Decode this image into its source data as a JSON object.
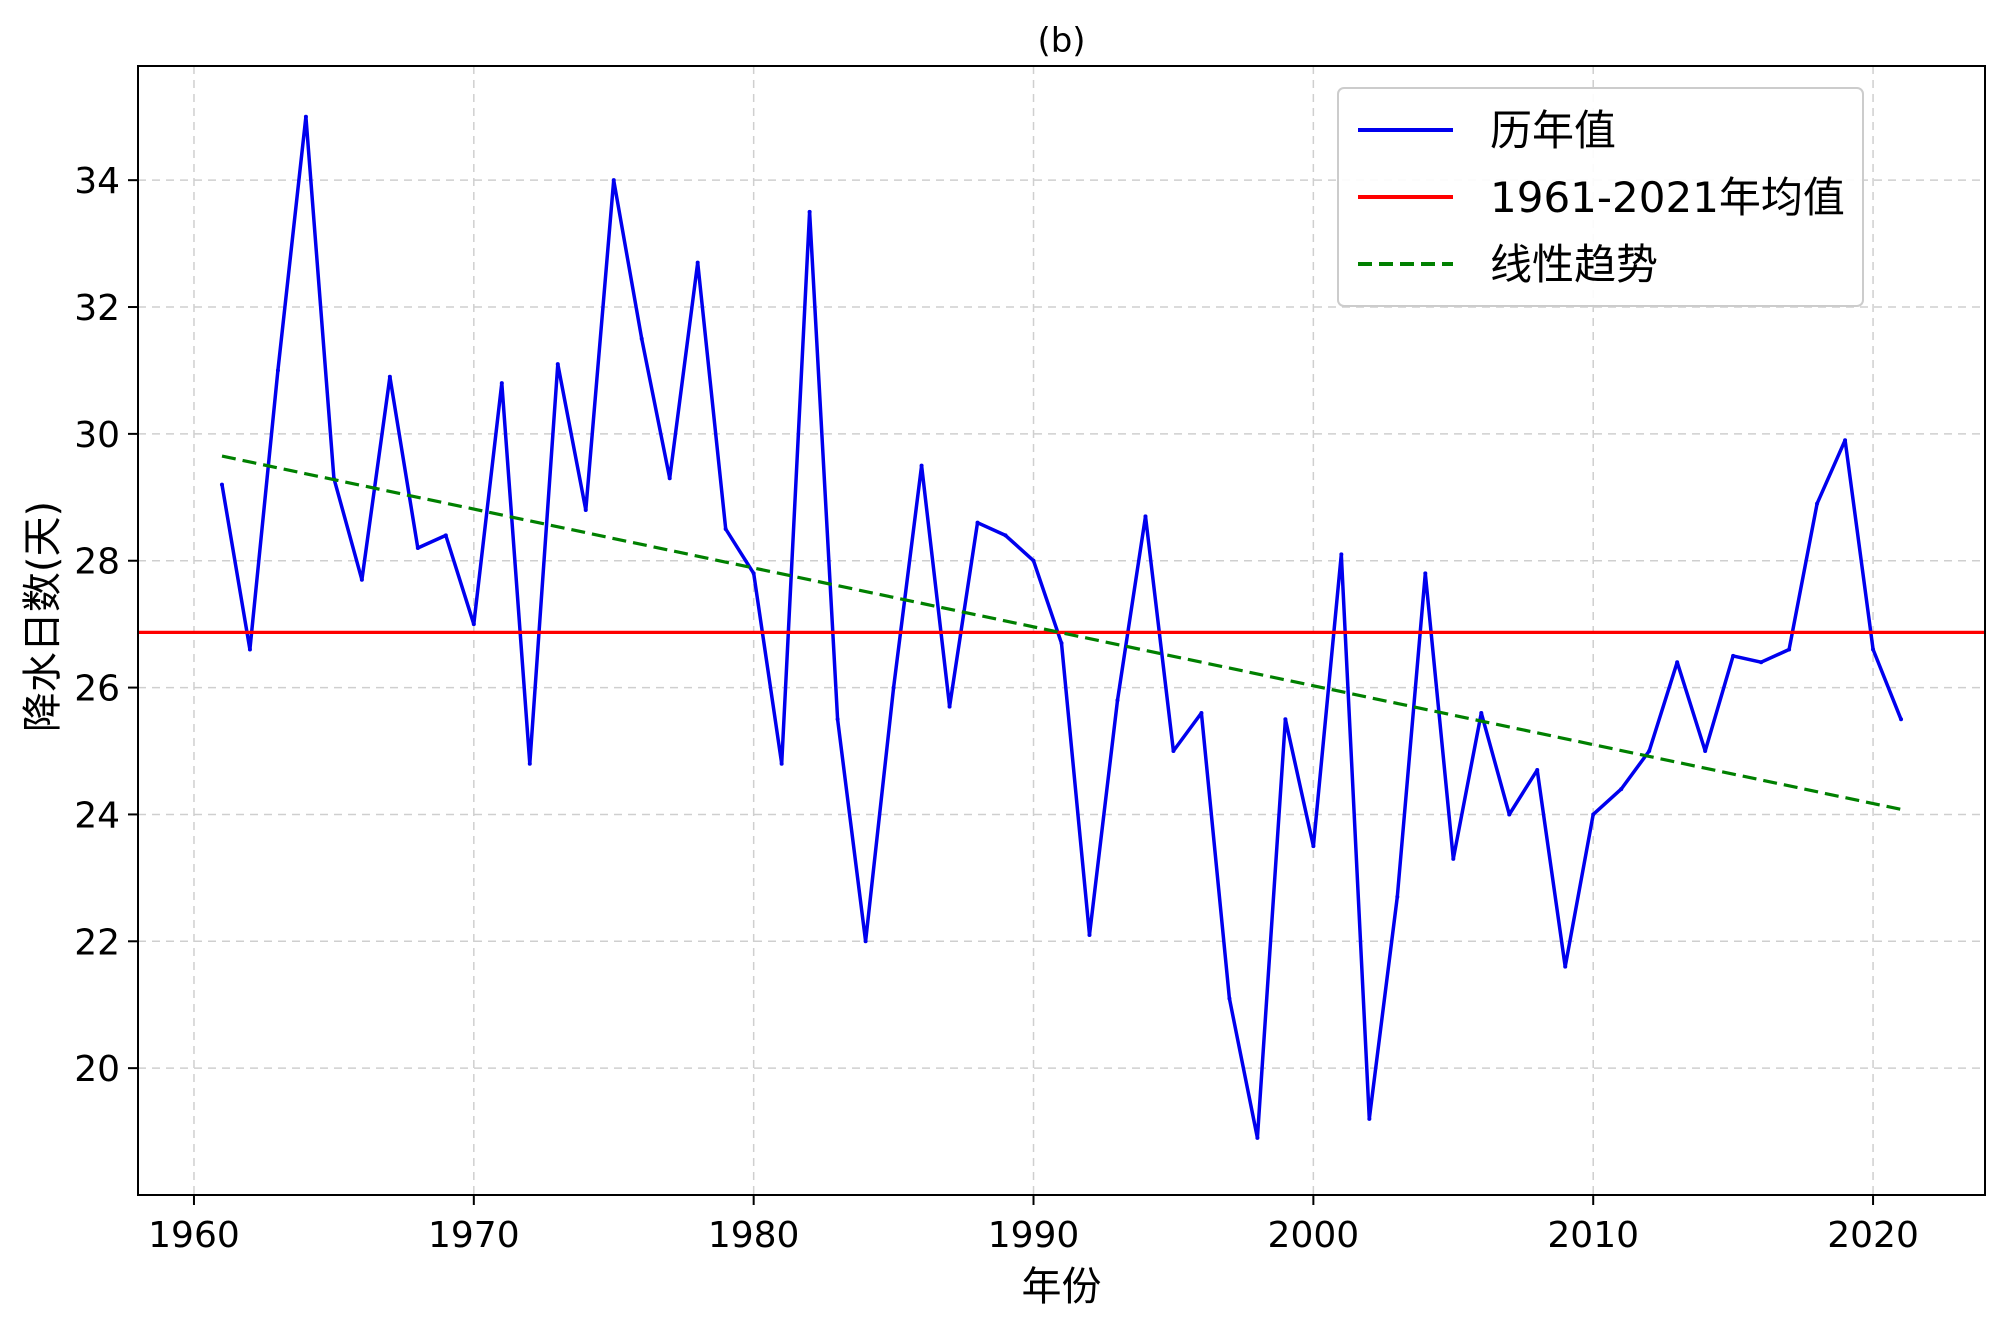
{
  "chart_data": {
    "type": "line",
    "title": "(b)",
    "xlabel": "年份",
    "ylabel": "降水日数(天)",
    "xlim": [
      1958,
      2024
    ],
    "ylim": [
      18,
      35.8
    ],
    "xticks": [
      1960,
      1970,
      1980,
      1990,
      2000,
      2010,
      2020
    ],
    "yticks": [
      20,
      22,
      24,
      26,
      28,
      30,
      32,
      34
    ],
    "grid": true,
    "legend_position": "top-right",
    "series": [
      {
        "name": "历年值",
        "color": "#0000ee",
        "style": "solid",
        "x": [
          1961,
          1962,
          1963,
          1964,
          1965,
          1966,
          1967,
          1968,
          1969,
          1970,
          1971,
          1972,
          1973,
          1974,
          1975,
          1976,
          1977,
          1978,
          1979,
          1980,
          1981,
          1982,
          1983,
          1984,
          1985,
          1986,
          1987,
          1988,
          1989,
          1990,
          1991,
          1992,
          1993,
          1994,
          1995,
          1996,
          1997,
          1998,
          1999,
          2000,
          2001,
          2002,
          2003,
          2004,
          2005,
          2006,
          2007,
          2008,
          2009,
          2010,
          2011,
          2012,
          2013,
          2014,
          2015,
          2016,
          2017,
          2018,
          2019,
          2020,
          2021
        ],
        "y": [
          29.2,
          26.6,
          31.0,
          35.0,
          29.3,
          27.7,
          30.9,
          28.2,
          28.4,
          27.0,
          30.8,
          24.8,
          31.1,
          28.8,
          34.0,
          31.5,
          29.3,
          32.7,
          28.5,
          27.8,
          24.8,
          33.5,
          25.5,
          22.0,
          26.0,
          29.5,
          25.7,
          28.6,
          28.4,
          28.0,
          26.7,
          22.1,
          25.8,
          28.7,
          25.0,
          25.6,
          21.1,
          18.9,
          25.5,
          23.5,
          28.1,
          19.2,
          22.7,
          27.8,
          23.3,
          25.6,
          24.0,
          24.7,
          21.6,
          24.0,
          24.4,
          25.0,
          26.4,
          25.0,
          26.5,
          26.4,
          26.6,
          28.9,
          29.9,
          26.6,
          25.5
        ]
      },
      {
        "name": "1961-2021年均值",
        "color": "#ff0000",
        "style": "solid",
        "x": [
          1958,
          2024
        ],
        "y": [
          26.87,
          26.87
        ]
      },
      {
        "name": "线性趋势",
        "color": "#008000",
        "style": "dashed",
        "x": [
          1961,
          2021
        ],
        "y": [
          29.65,
          24.08
        ]
      }
    ]
  }
}
